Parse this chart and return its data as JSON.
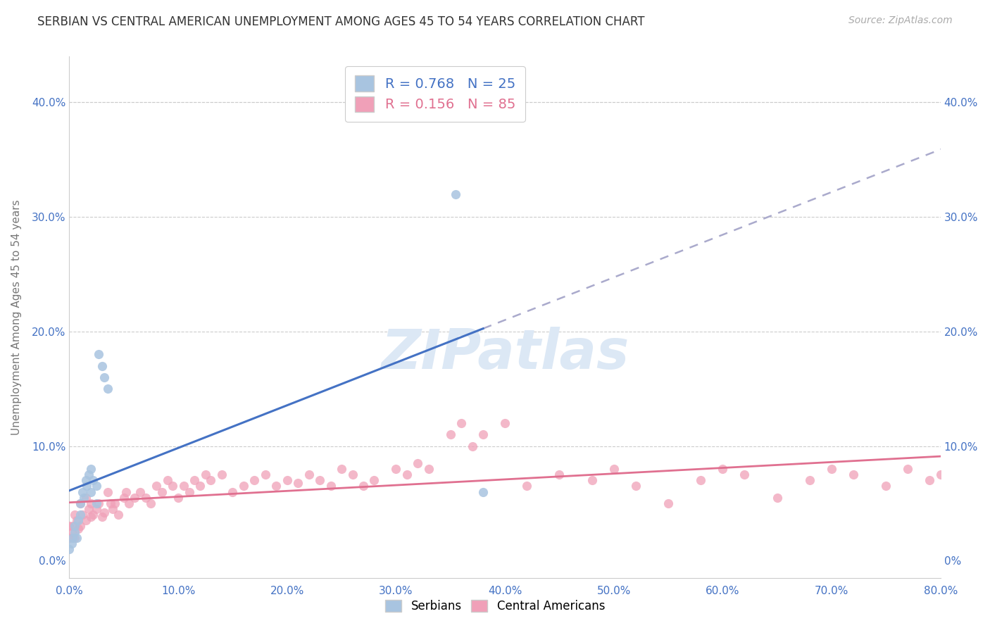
{
  "title": "SERBIAN VS CENTRAL AMERICAN UNEMPLOYMENT AMONG AGES 45 TO 54 YEARS CORRELATION CHART",
  "source": "Source: ZipAtlas.com",
  "ylabel": "Unemployment Among Ages 45 to 54 years",
  "xlim": [
    0.0,
    0.8
  ],
  "ylim": [
    -0.015,
    0.44
  ],
  "serbian_R": 0.768,
  "serbian_N": 25,
  "central_R": 0.156,
  "central_N": 85,
  "serbian_color": "#a8c4e0",
  "central_color": "#f0a0b8",
  "serbian_line_color": "#4472c4",
  "central_line_color": "#e07090",
  "watermark": "ZIPatlas",
  "watermark_color": "#d0dff0",
  "background_color": "#ffffff",
  "serbian_x": [
    0.0,
    0.002,
    0.003,
    0.005,
    0.005,
    0.007,
    0.008,
    0.01,
    0.01,
    0.012,
    0.013,
    0.015,
    0.016,
    0.018,
    0.02,
    0.02,
    0.022,
    0.025,
    0.025,
    0.027,
    0.03,
    0.032,
    0.035,
    0.355,
    0.38
  ],
  "serbian_y": [
    0.01,
    0.015,
    0.02,
    0.025,
    0.03,
    0.02,
    0.035,
    0.04,
    0.05,
    0.06,
    0.055,
    0.07,
    0.065,
    0.075,
    0.08,
    0.06,
    0.07,
    0.05,
    0.065,
    0.18,
    0.17,
    0.16,
    0.15,
    0.32,
    0.06
  ],
  "central_x": [
    0.0,
    0.0,
    0.002,
    0.003,
    0.005,
    0.005,
    0.007,
    0.008,
    0.01,
    0.01,
    0.012,
    0.015,
    0.015,
    0.018,
    0.02,
    0.02,
    0.022,
    0.025,
    0.027,
    0.03,
    0.032,
    0.035,
    0.038,
    0.04,
    0.042,
    0.045,
    0.05,
    0.052,
    0.055,
    0.06,
    0.065,
    0.07,
    0.075,
    0.08,
    0.085,
    0.09,
    0.095,
    0.1,
    0.105,
    0.11,
    0.115,
    0.12,
    0.125,
    0.13,
    0.14,
    0.15,
    0.16,
    0.17,
    0.18,
    0.19,
    0.2,
    0.21,
    0.22,
    0.23,
    0.24,
    0.25,
    0.26,
    0.27,
    0.28,
    0.3,
    0.31,
    0.32,
    0.33,
    0.35,
    0.36,
    0.37,
    0.38,
    0.4,
    0.42,
    0.45,
    0.48,
    0.5,
    0.52,
    0.55,
    0.58,
    0.6,
    0.62,
    0.65,
    0.68,
    0.7,
    0.72,
    0.75,
    0.77,
    0.79,
    0.8
  ],
  "central_y": [
    0.02,
    0.03,
    0.025,
    0.03,
    0.02,
    0.04,
    0.035,
    0.028,
    0.03,
    0.05,
    0.04,
    0.035,
    0.055,
    0.045,
    0.038,
    0.05,
    0.04,
    0.045,
    0.05,
    0.038,
    0.042,
    0.06,
    0.05,
    0.045,
    0.05,
    0.04,
    0.055,
    0.06,
    0.05,
    0.055,
    0.06,
    0.055,
    0.05,
    0.065,
    0.06,
    0.07,
    0.065,
    0.055,
    0.065,
    0.06,
    0.07,
    0.065,
    0.075,
    0.07,
    0.075,
    0.06,
    0.065,
    0.07,
    0.075,
    0.065,
    0.07,
    0.068,
    0.075,
    0.07,
    0.065,
    0.08,
    0.075,
    0.065,
    0.07,
    0.08,
    0.075,
    0.085,
    0.08,
    0.11,
    0.12,
    0.1,
    0.11,
    0.12,
    0.065,
    0.075,
    0.07,
    0.08,
    0.065,
    0.05,
    0.07,
    0.08,
    0.075,
    0.055,
    0.07,
    0.08,
    0.075,
    0.065,
    0.08,
    0.07,
    0.075
  ]
}
